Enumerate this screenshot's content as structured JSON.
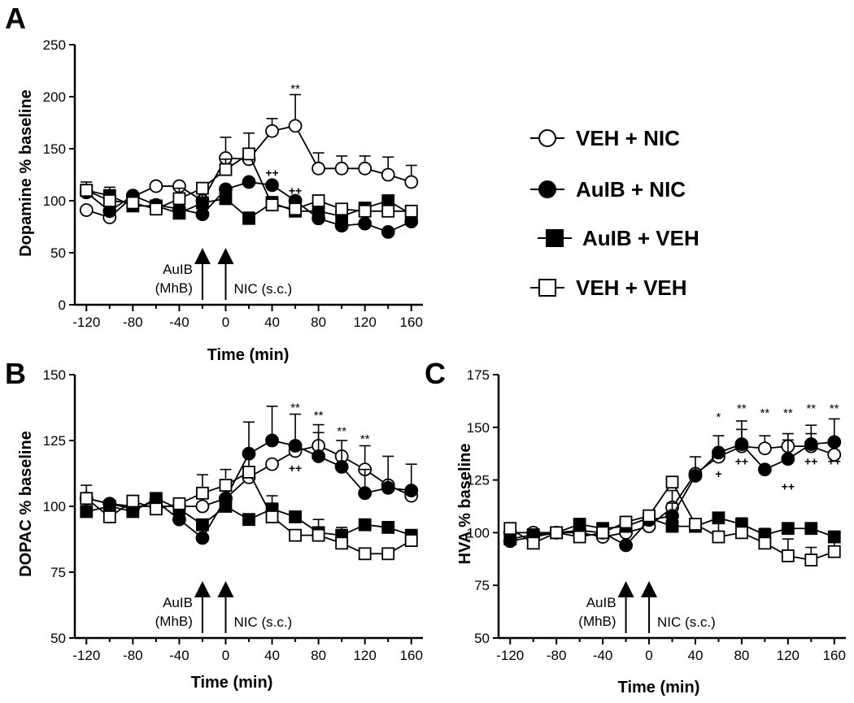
{
  "legend": [
    {
      "label": "VEH + NIC",
      "marker": "open-circle"
    },
    {
      "label": "AuIB + NIC",
      "marker": "filled-circle"
    },
    {
      "label": "AuIB + VEH",
      "marker": "filled-square"
    },
    {
      "label": "VEH + VEH",
      "marker": "open-square"
    }
  ],
  "chart_data": [
    {
      "id": "A",
      "panel_letter": "A",
      "type": "line",
      "xlabel": "Time (min)",
      "ylabel": "Dopamine % baseline",
      "xlim": [
        -130,
        170
      ],
      "ylim": [
        0,
        250
      ],
      "xticks": [
        -120,
        -80,
        -40,
        0,
        40,
        80,
        120,
        160
      ],
      "yticks": [
        0,
        50,
        100,
        150,
        200,
        250
      ],
      "x": [
        -120,
        -100,
        -80,
        -60,
        -40,
        -20,
        0,
        20,
        40,
        60,
        80,
        100,
        120,
        140,
        160
      ],
      "series": [
        {
          "name": "VEH + NIC",
          "marker": "open-circle",
          "values": [
            91,
            84,
            104,
            114,
            114,
            100,
            141,
            140,
            167,
            172,
            131,
            131,
            131,
            125,
            118
          ],
          "errors": [
            0,
            0,
            0,
            0,
            0,
            0,
            20,
            0,
            12,
            30,
            15,
            12,
            12,
            17,
            16
          ]
        },
        {
          "name": "AuIB + NIC",
          "marker": "filled-circle",
          "values": [
            108,
            90,
            105,
            96,
            92,
            87,
            111,
            118,
            115,
            100,
            83,
            76,
            78,
            70,
            80
          ],
          "errors": [
            0,
            0,
            0,
            0,
            0,
            8,
            0,
            0,
            0,
            0,
            10,
            8,
            8,
            0,
            12
          ]
        },
        {
          "name": "AuIB + VEH",
          "marker": "filled-square",
          "values": [
            110,
            105,
            95,
            95,
            88,
            98,
            102,
            83,
            98,
            90,
            90,
            85,
            93,
            100,
            87
          ],
          "errors": [
            0,
            8,
            0,
            0,
            0,
            10,
            7,
            6,
            0,
            0,
            0,
            0,
            0,
            0,
            0
          ]
        },
        {
          "name": "VEH + VEH",
          "marker": "open-square",
          "values": [
            110,
            100,
            98,
            92,
            102,
            112,
            130,
            145,
            96,
            92,
            100,
            92,
            90,
            90,
            90
          ],
          "errors": [
            8,
            0,
            0,
            0,
            10,
            0,
            10,
            20,
            8,
            8,
            0,
            0,
            0,
            10,
            0
          ]
        }
      ],
      "annotations": [
        {
          "x": 60,
          "y": 204,
          "text": "**",
          "kind": "sig"
        },
        {
          "x": 40,
          "y": 123,
          "text": "++",
          "kind": "plus"
        },
        {
          "x": 60,
          "y": 106,
          "text": "++",
          "kind": "plus"
        }
      ],
      "arrows": [
        {
          "x": -20,
          "label": [
            "AuIB",
            "(MhB)"
          ]
        },
        {
          "x": 0,
          "label": [
            "NIC (s.c.)"
          ]
        }
      ]
    },
    {
      "id": "B",
      "panel_letter": "B",
      "type": "line",
      "xlabel": "Time (min)",
      "ylabel": "DOPAC % baseline",
      "xlim": [
        -130,
        170
      ],
      "ylim": [
        50,
        150
      ],
      "xticks": [
        -120,
        -80,
        -40,
        0,
        40,
        80,
        120,
        160
      ],
      "yticks": [
        50,
        75,
        100,
        125,
        150
      ],
      "x": [
        -120,
        -100,
        -80,
        -60,
        -40,
        -20,
        0,
        20,
        40,
        60,
        80,
        100,
        120,
        140,
        160
      ],
      "series": [
        {
          "name": "VEH + NIC",
          "marker": "open-circle",
          "values": [
            103,
            101,
            100,
            100,
            100,
            100,
            103,
            111,
            116,
            121,
            123,
            119,
            114,
            108,
            104
          ],
          "errors": [
            0,
            0,
            0,
            0,
            0,
            0,
            0,
            0,
            0,
            0,
            8,
            0,
            9,
            0,
            0
          ]
        },
        {
          "name": "AuIB + NIC",
          "marker": "filled-circle",
          "values": [
            103,
            101,
            99,
            102,
            95,
            88,
            103,
            120,
            125,
            123,
            119,
            115,
            105,
            107,
            106
          ],
          "errors": [
            0,
            0,
            0,
            0,
            0,
            3,
            0,
            12,
            13,
            12,
            9,
            10,
            9,
            12,
            10
          ]
        },
        {
          "name": "AuIB + VEH",
          "marker": "filled-square",
          "values": [
            98,
            100,
            98,
            103,
            99,
            93,
            100,
            95,
            99,
            96,
            90,
            89,
            93,
            92,
            89
          ],
          "errors": [
            0,
            0,
            0,
            0,
            0,
            0,
            0,
            0,
            5,
            0,
            0,
            0,
            0,
            0,
            0
          ]
        },
        {
          "name": "VEH + VEH",
          "marker": "open-square",
          "values": [
            103,
            96,
            102,
            99,
            101,
            105,
            108,
            113,
            96,
            89,
            89,
            86,
            82,
            82,
            87
          ],
          "errors": [
            5,
            0,
            0,
            0,
            0,
            7,
            6,
            6,
            0,
            0,
            6,
            6,
            0,
            0,
            0
          ]
        }
      ],
      "annotations": [
        {
          "x": 60,
          "y": 136,
          "text": "**",
          "kind": "sig"
        },
        {
          "x": 80,
          "y": 133,
          "text": "**",
          "kind": "sig"
        },
        {
          "x": 100,
          "y": 127,
          "text": "**",
          "kind": "sig"
        },
        {
          "x": 120,
          "y": 124,
          "text": "**",
          "kind": "sig"
        },
        {
          "x": 60,
          "y": 113,
          "text": "++",
          "kind": "plus"
        }
      ],
      "arrows": [
        {
          "x": -20,
          "label": [
            "AuIB",
            "(MhB)"
          ]
        },
        {
          "x": 0,
          "label": [
            "NIC (s.c.)"
          ]
        }
      ]
    },
    {
      "id": "C",
      "panel_letter": "C",
      "type": "line",
      "xlabel": "Time (min)",
      "ylabel": "HVA % baseline",
      "xlim": [
        -130,
        170
      ],
      "ylim": [
        50,
        175
      ],
      "xticks": [
        -120,
        -80,
        -40,
        0,
        40,
        80,
        120,
        160
      ],
      "yticks": [
        50,
        75,
        100,
        125,
        150,
        175
      ],
      "x": [
        -120,
        -100,
        -80,
        -60,
        -40,
        -20,
        0,
        20,
        40,
        60,
        80,
        100,
        120,
        140,
        160
      ],
      "series": [
        {
          "name": "VEH + NIC",
          "marker": "open-circle",
          "values": [
            100,
            100,
            100,
            100,
            98,
            100,
            103,
            112,
            128,
            136,
            141,
            140,
            141,
            141,
            137
          ],
          "errors": [
            0,
            0,
            0,
            0,
            0,
            0,
            0,
            8,
            0,
            0,
            8,
            6,
            6,
            6,
            6
          ]
        },
        {
          "name": "AuIB + NIC",
          "marker": "filled-circle",
          "values": [
            96,
            98,
            100,
            101,
            100,
            94,
            106,
            108,
            127,
            138,
            142,
            130,
            135,
            142,
            143
          ],
          "errors": [
            0,
            0,
            0,
            0,
            0,
            0,
            0,
            6,
            9,
            8,
            11,
            0,
            9,
            9,
            11
          ]
        },
        {
          "name": "AuIB + VEH",
          "marker": "filled-square",
          "values": [
            97,
            99,
            100,
            104,
            102,
            103,
            107,
            103,
            103,
            107,
            104,
            99,
            102,
            102,
            98
          ],
          "errors": [
            0,
            0,
            0,
            0,
            0,
            0,
            0,
            0,
            0,
            0,
            0,
            0,
            0,
            0,
            0
          ]
        },
        {
          "name": "VEH + VEH",
          "marker": "open-square",
          "values": [
            102,
            95,
            100,
            98,
            100,
            105,
            108,
            124,
            104,
            98,
            100,
            95,
            89,
            87,
            91
          ],
          "errors": [
            0,
            0,
            0,
            0,
            4,
            0,
            0,
            0,
            0,
            8,
            7,
            7,
            8,
            6,
            5
          ]
        }
      ],
      "annotations": [
        {
          "x": 60,
          "y": 153,
          "text": "*",
          "kind": "sig"
        },
        {
          "x": 80,
          "y": 157,
          "text": "**",
          "kind": "sig"
        },
        {
          "x": 100,
          "y": 155,
          "text": "**",
          "kind": "sig"
        },
        {
          "x": 120,
          "y": 155,
          "text": "**",
          "kind": "sig"
        },
        {
          "x": 140,
          "y": 157,
          "text": "**",
          "kind": "sig"
        },
        {
          "x": 160,
          "y": 157,
          "text": "**",
          "kind": "sig"
        },
        {
          "x": 60,
          "y": 126,
          "text": "+",
          "kind": "plus"
        },
        {
          "x": 80,
          "y": 132,
          "text": "++",
          "kind": "plus"
        },
        {
          "x": 120,
          "y": 120,
          "text": "++",
          "kind": "plus"
        },
        {
          "x": 140,
          "y": 132,
          "text": "++",
          "kind": "plus"
        },
        {
          "x": 160,
          "y": 132,
          "text": "++",
          "kind": "plus"
        }
      ],
      "arrows": [
        {
          "x": -20,
          "label": [
            "AuIB",
            "(MhB)"
          ]
        },
        {
          "x": 0,
          "label": [
            "NIC (s.c.)"
          ]
        }
      ]
    }
  ]
}
